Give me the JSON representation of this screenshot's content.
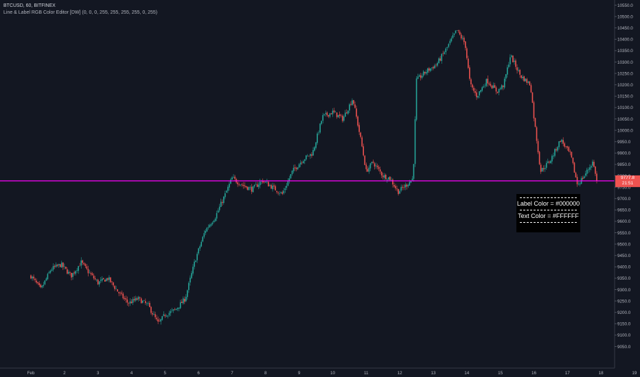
{
  "legend": {
    "symbol_line": "BTCUSD, 60, BITFINEX",
    "indicator_line": "Line & Label RGB Color Editor [DW] (0, 0, 0, 255, 255, 255, 255, 0, 255)"
  },
  "annotation": {
    "label_text": "Label Color = #000000",
    "text_text": "Text Color = #FFFFFF"
  },
  "price_tag": {
    "price": "9777.8",
    "countdown": "21:51",
    "color": "#ef5350"
  },
  "colors": {
    "background": "#131722",
    "up": "#26a69a",
    "down": "#ef5350",
    "horizontal_line": "#ff00ff",
    "label_bg": "#000000",
    "label_text": "#FFFFFF"
  },
  "chart_data": {
    "type": "candlestick",
    "symbol": "BTCUSD",
    "interval": "60",
    "exchange": "BITFINEX",
    "ylim": [
      9025,
      10575
    ],
    "y_ticks": [
      "10550.0",
      "10500.0",
      "10450.0",
      "10400.0",
      "10350.0",
      "10300.0",
      "10250.0",
      "10200.0",
      "10150.0",
      "10100.0",
      "10050.0",
      "10000.0",
      "9950.0",
      "9900.0",
      "9850.0",
      "9800.0",
      "9750.0",
      "9700.0",
      "9650.0",
      "9600.0",
      "9550.0",
      "9500.0",
      "9450.0",
      "9400.0",
      "9350.0",
      "9300.0",
      "9250.0",
      "9200.0",
      "9150.0",
      "9100.0",
      "9050.0"
    ],
    "x_ticks": [
      "Feb",
      "2",
      "3",
      "4",
      "5",
      "6",
      "7",
      "8",
      "9",
      "10",
      "11",
      "12",
      "13",
      "14",
      "15",
      "16",
      "17",
      "18",
      "19"
    ],
    "horizontal_line": 9777.8,
    "close_path": [
      [
        0,
        9360
      ],
      [
        0.3,
        9300
      ],
      [
        0.6,
        9390
      ],
      [
        0.9,
        9410
      ],
      [
        1.2,
        9360
      ],
      [
        1.5,
        9420
      ],
      [
        1.7,
        9380
      ],
      [
        2.0,
        9330
      ],
      [
        2.3,
        9350
      ],
      [
        2.6,
        9290
      ],
      [
        2.9,
        9240
      ],
      [
        3.2,
        9260
      ],
      [
        3.5,
        9230
      ],
      [
        3.8,
        9150
      ],
      [
        4.0,
        9190
      ],
      [
        4.3,
        9210
      ],
      [
        4.6,
        9260
      ],
      [
        4.9,
        9430
      ],
      [
        5.2,
        9560
      ],
      [
        5.5,
        9620
      ],
      [
        5.8,
        9720
      ],
      [
        6.0,
        9790
      ],
      [
        6.3,
        9760
      ],
      [
        6.6,
        9740
      ],
      [
        6.9,
        9780
      ],
      [
        7.2,
        9750
      ],
      [
        7.5,
        9720
      ],
      [
        7.8,
        9820
      ],
      [
        8.1,
        9870
      ],
      [
        8.4,
        9900
      ],
      [
        8.7,
        10060
      ],
      [
        9.0,
        10080
      ],
      [
        9.3,
        10050
      ],
      [
        9.6,
        10140
      ],
      [
        9.85,
        9950
      ],
      [
        10.0,
        9820
      ],
      [
        10.2,
        9860
      ],
      [
        10.5,
        9800
      ],
      [
        10.7,
        9790
      ],
      [
        10.95,
        9730
      ],
      [
        11.2,
        9760
      ],
      [
        11.4,
        9790
      ],
      [
        11.5,
        10220
      ],
      [
        11.8,
        10260
      ],
      [
        12.1,
        10290
      ],
      [
        12.4,
        10360
      ],
      [
        12.7,
        10440
      ],
      [
        12.95,
        10380
      ],
      [
        13.1,
        10200
      ],
      [
        13.3,
        10150
      ],
      [
        13.6,
        10220
      ],
      [
        13.9,
        10170
      ],
      [
        14.1,
        10200
      ],
      [
        14.3,
        10330
      ],
      [
        14.6,
        10240
      ],
      [
        14.9,
        10200
      ],
      [
        15.0,
        10060
      ],
      [
        15.2,
        9820
      ],
      [
        15.5,
        9870
      ],
      [
        15.8,
        9960
      ],
      [
        16.1,
        9890
      ],
      [
        16.3,
        9760
      ],
      [
        16.5,
        9800
      ],
      [
        16.75,
        9860
      ],
      [
        16.9,
        9777.8
      ]
    ]
  }
}
